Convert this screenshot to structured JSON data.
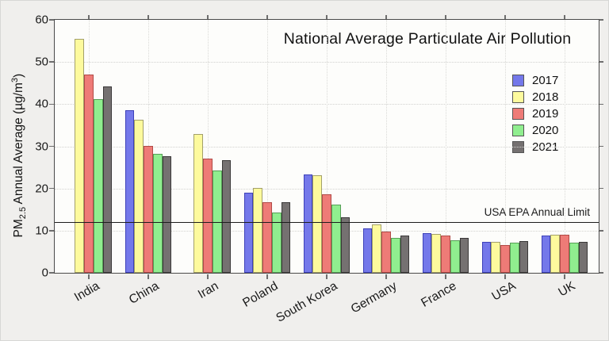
{
  "figure": {
    "title": "National Average Particulate Air Pollution",
    "background_color": "#f0efed",
    "plot_background_color": "#fdfdfb"
  },
  "ylabel_parts": {
    "prefix": "PM",
    "sub": "2.5",
    "mid": " Annual Average (µg/m",
    "sup": "3",
    "suffix": ")"
  },
  "annotation": {
    "epa_limit_label": "USA EPA Annual Limit",
    "epa_limit_value": 12
  },
  "chart_data": {
    "type": "bar",
    "title": "National Average Particulate Air Pollution",
    "ylabel": "PM2.5 Annual Average (µg/m³)",
    "xlabel": "",
    "ylim": [
      0,
      60
    ],
    "yticks": [
      0,
      10,
      20,
      30,
      40,
      50,
      60
    ],
    "grid": true,
    "legend_position": "upper right",
    "legend_entries": [
      "2017",
      "2018",
      "2019",
      "2020",
      "2021"
    ],
    "categories": [
      "India",
      "China",
      "Iran",
      "Poland",
      "South Korea",
      "Germany",
      "France",
      "USA",
      "UK"
    ],
    "series": [
      {
        "name": "2017",
        "color": "#7478ea",
        "border_color": "#3d41b8",
        "values": [
          null,
          38.6,
          null,
          19.0,
          23.3,
          10.6,
          9.4,
          7.4,
          8.9
        ]
      },
      {
        "name": "2018",
        "color": "#fdfa9d",
        "border_color": "#a3a06a",
        "values": [
          55.5,
          36.3,
          33.0,
          20.2,
          23.2,
          11.5,
          9.2,
          7.3,
          9.1
        ]
      },
      {
        "name": "2019",
        "color": "#ee7b77",
        "border_color": "#b14a46",
        "values": [
          47.0,
          30.1,
          27.0,
          16.7,
          18.7,
          9.8,
          8.9,
          6.6,
          9.0
        ]
      },
      {
        "name": "2020",
        "color": "#90ee8f",
        "border_color": "#579e57",
        "values": [
          41.2,
          28.2,
          24.2,
          14.3,
          16.1,
          8.3,
          7.8,
          7.1,
          7.1
        ]
      },
      {
        "name": "2021",
        "color": "#757171",
        "border_color": "#3a3838",
        "values": [
          44.2,
          27.6,
          26.8,
          16.8,
          13.2,
          8.9,
          8.2,
          7.5,
          7.3
        ]
      }
    ],
    "annotation_line": {
      "label": "USA EPA Annual Limit",
      "y": 12
    }
  }
}
